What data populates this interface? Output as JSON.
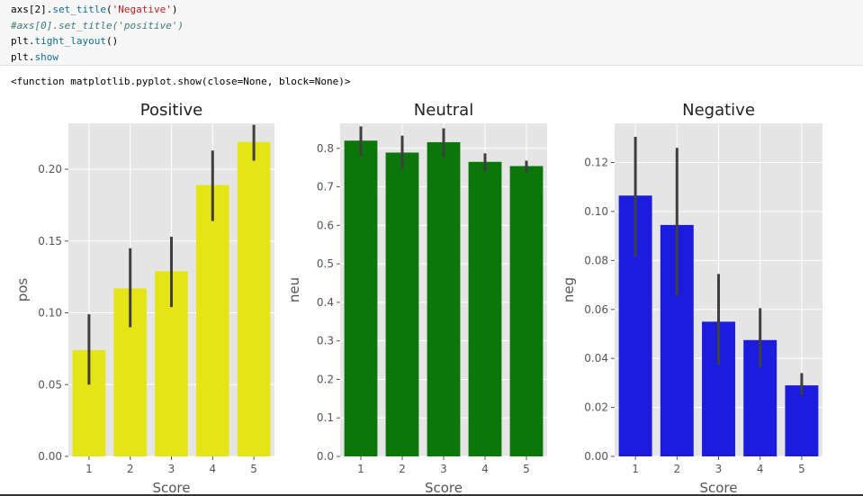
{
  "code_cell": {
    "lines": [
      {
        "tokens": [
          {
            "t": "axs[2].",
            "c": "name"
          },
          {
            "t": "set_title",
            "c": "attr"
          },
          {
            "t": "(",
            "c": "name"
          },
          {
            "t": "'Negative'",
            "c": "str"
          },
          {
            "t": ")",
            "c": "name"
          }
        ]
      },
      {
        "tokens": [
          {
            "t": "#axs[0].set_title('positive')",
            "c": "comment"
          }
        ]
      },
      {
        "tokens": [
          {
            "t": "plt.",
            "c": "name"
          },
          {
            "t": "tight_layout",
            "c": "attr"
          },
          {
            "t": "()",
            "c": "name"
          }
        ]
      },
      {
        "tokens": [
          {
            "t": "plt.",
            "c": "name"
          },
          {
            "t": "show",
            "c": "attr"
          }
        ]
      }
    ]
  },
  "output": {
    "text": "<function matplotlib.pyplot.show(close=None, block=None)>"
  },
  "chart_data": [
    {
      "type": "bar",
      "title": "Positive",
      "xlabel": "Score",
      "ylabel": "pos",
      "categories": [
        "1",
        "2",
        "3",
        "4",
        "5"
      ],
      "values": [
        0.074,
        0.117,
        0.129,
        0.189,
        0.219
      ],
      "error_low": [
        0.05,
        0.09,
        0.104,
        0.164,
        0.206
      ],
      "error_high": [
        0.099,
        0.145,
        0.153,
        0.213,
        0.231
      ],
      "ylim": [
        0,
        0.232
      ],
      "yticks": [
        0.0,
        0.05,
        0.1,
        0.15,
        0.2
      ],
      "ytick_labels": [
        "0.00",
        "0.05",
        "0.10",
        "0.15",
        "0.20"
      ],
      "color": "#e5e516",
      "grid": true
    },
    {
      "type": "bar",
      "title": "Neutral",
      "xlabel": "Score",
      "ylabel": "neu",
      "categories": [
        "1",
        "2",
        "3",
        "4",
        "5"
      ],
      "values": [
        0.82,
        0.789,
        0.816,
        0.765,
        0.754
      ],
      "error_low": [
        0.78,
        0.745,
        0.777,
        0.74,
        0.738
      ],
      "error_high": [
        0.857,
        0.833,
        0.852,
        0.787,
        0.768
      ],
      "ylim": [
        0,
        0.865
      ],
      "yticks": [
        0.0,
        0.1,
        0.2,
        0.3,
        0.4,
        0.5,
        0.6,
        0.7,
        0.8
      ],
      "ytick_labels": [
        "0.0",
        "0.1",
        "0.2",
        "0.3",
        "0.4",
        "0.5",
        "0.6",
        "0.7",
        "0.8"
      ],
      "color": "#0b770b",
      "grid": true
    },
    {
      "type": "bar",
      "title": "Negative",
      "xlabel": "Score",
      "ylabel": "neg",
      "categories": [
        "1",
        "2",
        "3",
        "4",
        "5"
      ],
      "values": [
        0.1065,
        0.0945,
        0.055,
        0.0475,
        0.029
      ],
      "error_low": [
        0.0815,
        0.0655,
        0.0375,
        0.0365,
        0.025
      ],
      "error_high": [
        0.1305,
        0.126,
        0.0745,
        0.0605,
        0.034
      ],
      "ylim": [
        0,
        0.136
      ],
      "yticks": [
        0.0,
        0.02,
        0.04,
        0.06,
        0.08,
        0.1,
        0.12
      ],
      "ytick_labels": [
        "0.00",
        "0.02",
        "0.04",
        "0.06",
        "0.08",
        "0.10",
        "0.12"
      ],
      "color": "#1c1cdf",
      "grid": true
    }
  ]
}
